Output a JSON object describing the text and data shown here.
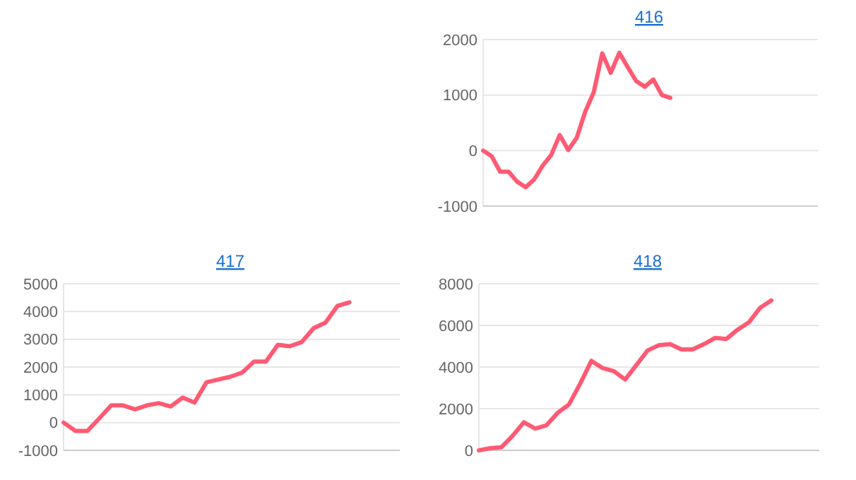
{
  "chart_data": [
    {
      "type": "line",
      "title": "416",
      "categories": [
        null,
        null,
        null,
        null,
        null,
        null,
        null,
        null,
        null,
        null,
        null,
        null,
        null,
        null,
        null,
        null,
        null,
        null,
        null,
        null,
        null,
        null,
        null,
        null,
        null,
        null,
        null,
        null,
        null,
        null,
        null,
        null,
        null,
        null,
        null,
        null,
        null,
        null,
        null,
        null
      ],
      "series": [
        {
          "color": "#ff5a73",
          "values": [
            0,
            -100,
            -380,
            -380,
            -560,
            -660,
            -520,
            -270,
            -80,
            280,
            10,
            230,
            700,
            1050,
            1750,
            1400,
            1760,
            1500,
            1250,
            1150,
            1280,
            1000,
            950,
            null,
            null,
            null,
            null,
            null,
            null,
            null,
            null,
            null,
            null,
            null,
            null,
            null,
            null,
            null,
            null,
            null
          ]
        }
      ],
      "ylim": [
        -1000,
        2000
      ],
      "yticks": [
        -1000,
        0,
        1000,
        2000
      ],
      "grid": "y",
      "marker": "none",
      "line_style": "solid"
    },
    {
      "type": "line",
      "title": "417",
      "categories": [
        null,
        null,
        null,
        null,
        null,
        null,
        null,
        null,
        null,
        null,
        null,
        null,
        null,
        null,
        null,
        null,
        null,
        null,
        null,
        null,
        null,
        null,
        null,
        null,
        null,
        null,
        null,
        null,
        null
      ],
      "series": [
        {
          "color": "#ff5a73",
          "values": [
            0,
            -300,
            -300,
            150,
            620,
            620,
            480,
            620,
            700,
            580,
            900,
            720,
            1450,
            1550,
            1650,
            1800,
            2200,
            2200,
            2800,
            2750,
            2900,
            3400,
            3600,
            4200,
            4330,
            null,
            null,
            null,
            null
          ]
        }
      ],
      "ylim": [
        -1000,
        5000
      ],
      "yticks": [
        -1000,
        0,
        1000,
        2000,
        3000,
        4000,
        5000
      ],
      "grid": "y",
      "marker": "none",
      "line_style": "solid"
    },
    {
      "type": "line",
      "title": "418",
      "categories": [
        null,
        null,
        null,
        null,
        null,
        null,
        null,
        null,
        null,
        null,
        null,
        null,
        null,
        null,
        null,
        null,
        null,
        null,
        null,
        null,
        null,
        null,
        null,
        null,
        null,
        null,
        null,
        null,
        null,
        null,
        null
      ],
      "series": [
        {
          "color": "#ff5a73",
          "values": [
            0,
            100,
            150,
            700,
            1350,
            1050,
            1200,
            1800,
            2200,
            3200,
            4300,
            3950,
            3800,
            3400,
            4100,
            4800,
            5050,
            5100,
            4850,
            4850,
            5100,
            5400,
            5350,
            5800,
            6150,
            6850,
            7200,
            null,
            null,
            null,
            null
          ]
        }
      ],
      "ylim": [
        0,
        8000
      ],
      "yticks": [
        0,
        2000,
        4000,
        6000,
        8000
      ],
      "grid": "y",
      "marker": "none",
      "line_style": "solid"
    }
  ]
}
